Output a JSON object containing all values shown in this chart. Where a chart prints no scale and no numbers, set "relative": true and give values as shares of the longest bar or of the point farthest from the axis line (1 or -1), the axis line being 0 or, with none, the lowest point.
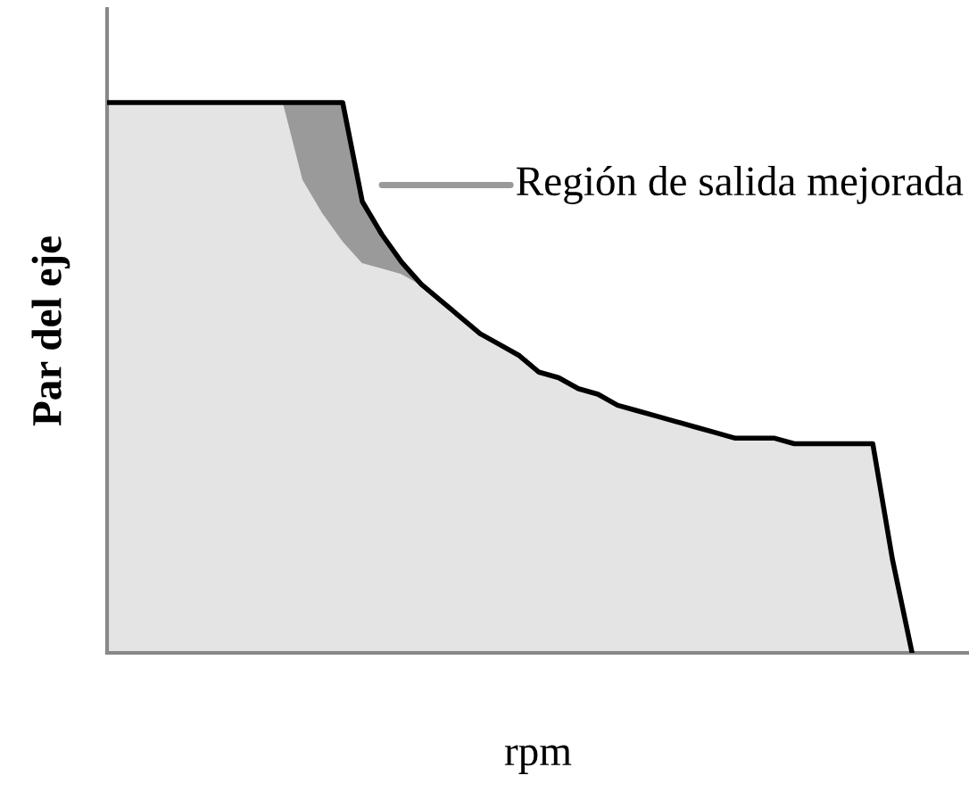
{
  "chart_data": {
    "type": "area",
    "relative": true,
    "stacked": true,
    "xlabel": "rpm",
    "ylabel": "Par del eje",
    "categories": [
      null,
      null,
      null,
      null,
      null,
      null,
      null,
      null,
      null,
      null,
      null,
      null,
      null,
      null,
      null,
      null,
      null,
      null,
      null,
      null,
      null,
      null,
      null,
      null,
      null,
      null,
      null,
      null,
      null,
      null,
      null,
      null,
      null,
      null,
      null,
      null,
      null,
      null,
      null,
      null,
      null,
      null
    ],
    "series": [
      {
        "color": "#e4e4e4",
        "values": [
          1,
          1,
          1,
          1,
          1,
          1,
          1,
          1,
          1,
          1,
          0.86,
          0.8,
          0.75,
          0.71,
          0.7,
          0.69,
          0.67,
          0.64,
          0.61,
          0.58,
          0.56,
          0.54,
          0.51,
          0.5,
          0.48,
          0.47,
          0.45,
          0.44,
          0.43,
          0.42,
          0.41,
          0.4,
          0.39,
          0.39,
          0.39,
          0.38,
          0.38,
          0.38,
          0.38,
          0.38,
          0.17,
          0
        ]
      },
      {
        "color": "#9a9a9a",
        "values": [
          null,
          null,
          null,
          null,
          null,
          null,
          null,
          null,
          null,
          0,
          0.14,
          0.2,
          0.25,
          0.11,
          0.06,
          0.02,
          0,
          null,
          null,
          null,
          null,
          null,
          null,
          null,
          null,
          null,
          null,
          null,
          null,
          null,
          null,
          null,
          null,
          null,
          null,
          null,
          null,
          null,
          null,
          null,
          null,
          null
        ]
      }
    ],
    "annotations": [
      "Región de salida mejorada"
    ]
  }
}
